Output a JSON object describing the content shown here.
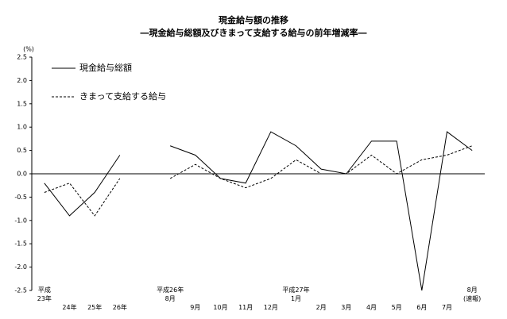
{
  "chart_data": {
    "type": "line",
    "title": "現金給与額の推移",
    "subtitle": "―現金給与総額及びきまって支給する給与の前年増減率―",
    "y_unit": "(%)",
    "categories": [
      "平成\n23年",
      "24年",
      "25年",
      "26年",
      null,
      "平成26年\n8月",
      "9月",
      "10月",
      "11月",
      "12月",
      "平成27年\n1月",
      "2月",
      "3月",
      "4月",
      "5月",
      "6月",
      "7月",
      "8月\n(速報)"
    ],
    "series": [
      {
        "name": "現金給与総額",
        "color": "#000000",
        "dash": "solid",
        "values": [
          -0.2,
          -0.9,
          -0.4,
          0.4,
          null,
          0.6,
          0.4,
          -0.1,
          -0.2,
          0.9,
          0.6,
          0.1,
          0.0,
          0.7,
          0.7,
          -2.5,
          0.9,
          0.5
        ]
      },
      {
        "name": "きまって支給する給与",
        "color": "#000000",
        "dash": "dashed",
        "values": [
          -0.4,
          -0.2,
          -0.9,
          -0.1,
          null,
          -0.1,
          0.2,
          -0.1,
          -0.3,
          -0.1,
          0.3,
          0.0,
          0.0,
          0.4,
          0.0,
          0.3,
          0.4,
          0.6
        ]
      }
    ],
    "ylim": [
      -2.5,
      2.5
    ],
    "yticks": [
      -2.5,
      {
        "value": -2,
        "label": "-2.0"
      },
      -1.5,
      {
        "value": -1,
        "label": "-1.0"
      },
      -0.5,
      {
        "value": 0,
        "label": "0.0"
      },
      0.5,
      {
        "value": 1,
        "label": "1.0"
      },
      1.5,
      {
        "value": 2,
        "label": "2.0"
      },
      2.5
    ],
    "grid": false,
    "legend": "upper left"
  }
}
